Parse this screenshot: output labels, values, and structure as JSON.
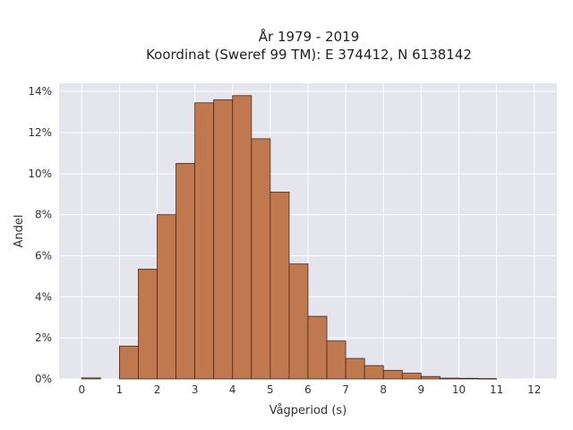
{
  "chart_data": {
    "type": "bar",
    "title": "År 1979 - 2019",
    "subtitle": "Koordinat (Sweref 99 TM): E 374412, N 6138142",
    "xlabel": "Vågperiod (s)",
    "ylabel": "Andel",
    "x_ticks": [
      "0",
      "1",
      "2",
      "3",
      "4",
      "5",
      "6",
      "7",
      "8",
      "9",
      "10",
      "11",
      "12"
    ],
    "y_ticks": [
      "0%",
      "2%",
      "4%",
      "6%",
      "8%",
      "10%",
      "12%",
      "14%"
    ],
    "xlim": [
      -0.6,
      12.6
    ],
    "ylim": [
      0,
      14.4
    ],
    "bin_width": 0.5,
    "bins": [
      {
        "x0": 0.0,
        "value": 0.05
      },
      {
        "x0": 1.0,
        "value": 1.6
      },
      {
        "x0": 1.5,
        "value": 5.35
      },
      {
        "x0": 2.0,
        "value": 8.0
      },
      {
        "x0": 2.5,
        "value": 10.5
      },
      {
        "x0": 3.0,
        "value": 13.45
      },
      {
        "x0": 3.5,
        "value": 13.6
      },
      {
        "x0": 4.0,
        "value": 13.8
      },
      {
        "x0": 4.5,
        "value": 11.7
      },
      {
        "x0": 5.0,
        "value": 9.1
      },
      {
        "x0": 5.5,
        "value": 5.6
      },
      {
        "x0": 6.0,
        "value": 3.05
      },
      {
        "x0": 6.5,
        "value": 1.85
      },
      {
        "x0": 7.0,
        "value": 1.0
      },
      {
        "x0": 7.5,
        "value": 0.65
      },
      {
        "x0": 8.0,
        "value": 0.42
      },
      {
        "x0": 8.5,
        "value": 0.28
      },
      {
        "x0": 9.0,
        "value": 0.12
      },
      {
        "x0": 9.5,
        "value": 0.04
      },
      {
        "x0": 10.0,
        "value": 0.03
      },
      {
        "x0": 10.5,
        "value": 0.02
      }
    ],
    "grid": true,
    "colors": {
      "bar": "#c0784e",
      "bar_edge": "#4a2a1c",
      "plot_bg": "#e5e5ee",
      "grid": "#ffffff"
    }
  }
}
